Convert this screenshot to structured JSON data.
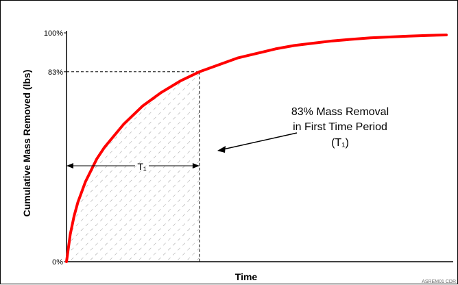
{
  "chart_data": {
    "type": "line",
    "title": "",
    "xlabel": "Time",
    "ylabel": "Cumulative Mass Removed (lbs)",
    "yticks": [
      {
        "label": "100%",
        "value": 100
      },
      {
        "label": "83%",
        "value": 83
      },
      {
        "label": "0%",
        "value": 0
      }
    ],
    "ylim": [
      0,
      100
    ],
    "xlim": [
      0,
      100
    ],
    "series": [
      {
        "color": "#ff0000",
        "x": [
          0,
          1,
          2,
          3,
          5,
          8,
          10,
          15,
          20,
          25,
          30,
          35,
          40,
          45,
          50,
          55,
          60,
          65,
          70,
          75,
          80,
          85,
          90,
          95,
          100
        ],
        "y": [
          0,
          12,
          20,
          26,
          35,
          45,
          50,
          60,
          68,
          74,
          79,
          83,
          86,
          89,
          91,
          93,
          94.5,
          95.5,
          96.5,
          97.2,
          97.8,
          98.2,
          98.6,
          98.9,
          99.1
        ]
      }
    ],
    "reference": {
      "x": 35,
      "y": 83
    },
    "t1_label": "T₁",
    "annotation": {
      "lines": [
        "83% Mass Removal",
        "in First Time Period",
        "(T₁)"
      ]
    },
    "grid": false,
    "shaded_region": "hatched area under curve from x=0 to x=T1"
  },
  "credit": "ASREM01 CDR",
  "colors": {
    "curve": "#ff0000",
    "axis": "#000000",
    "hatch": "#999999"
  }
}
